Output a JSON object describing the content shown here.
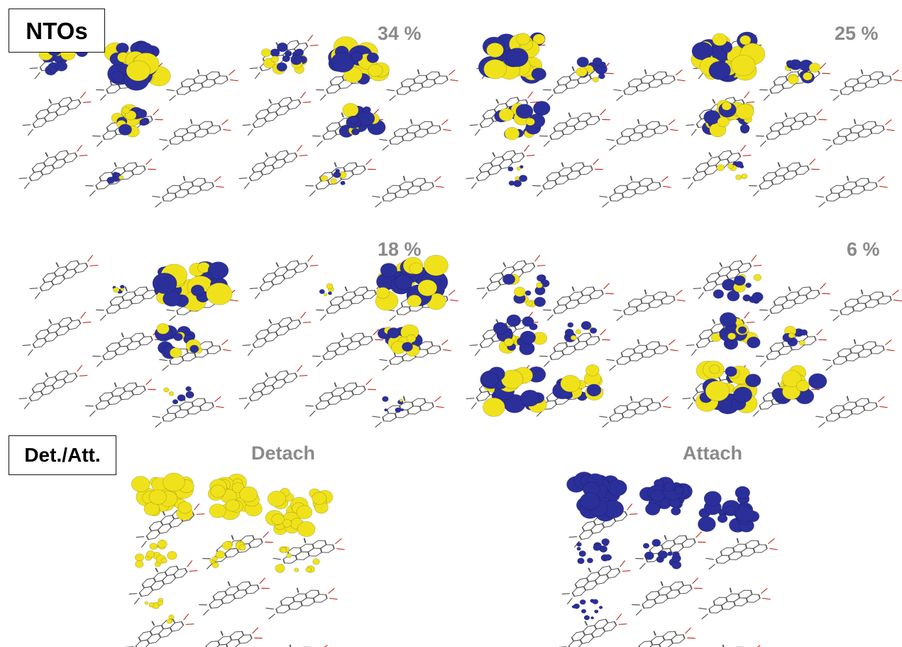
{
  "labels": {
    "ntos": "NTOs",
    "det_att": "Det./Att.",
    "detach": "Detach",
    "attach": "Attach"
  },
  "panels": [
    {
      "id": "p1",
      "weight": "34 %"
    },
    {
      "id": "p2",
      "weight": "25 %"
    },
    {
      "id": "p3",
      "weight": "18 %"
    },
    {
      "id": "p4",
      "weight": "6 %"
    }
  ],
  "colors": {
    "lobe_positive": "#f0e21a",
    "lobe_negative": "#2b2f9a",
    "bond": "#555555",
    "oxygen": "#c0392b",
    "nitrogen": "#3b4bb0",
    "percent_text": "#8a8a8a"
  }
}
